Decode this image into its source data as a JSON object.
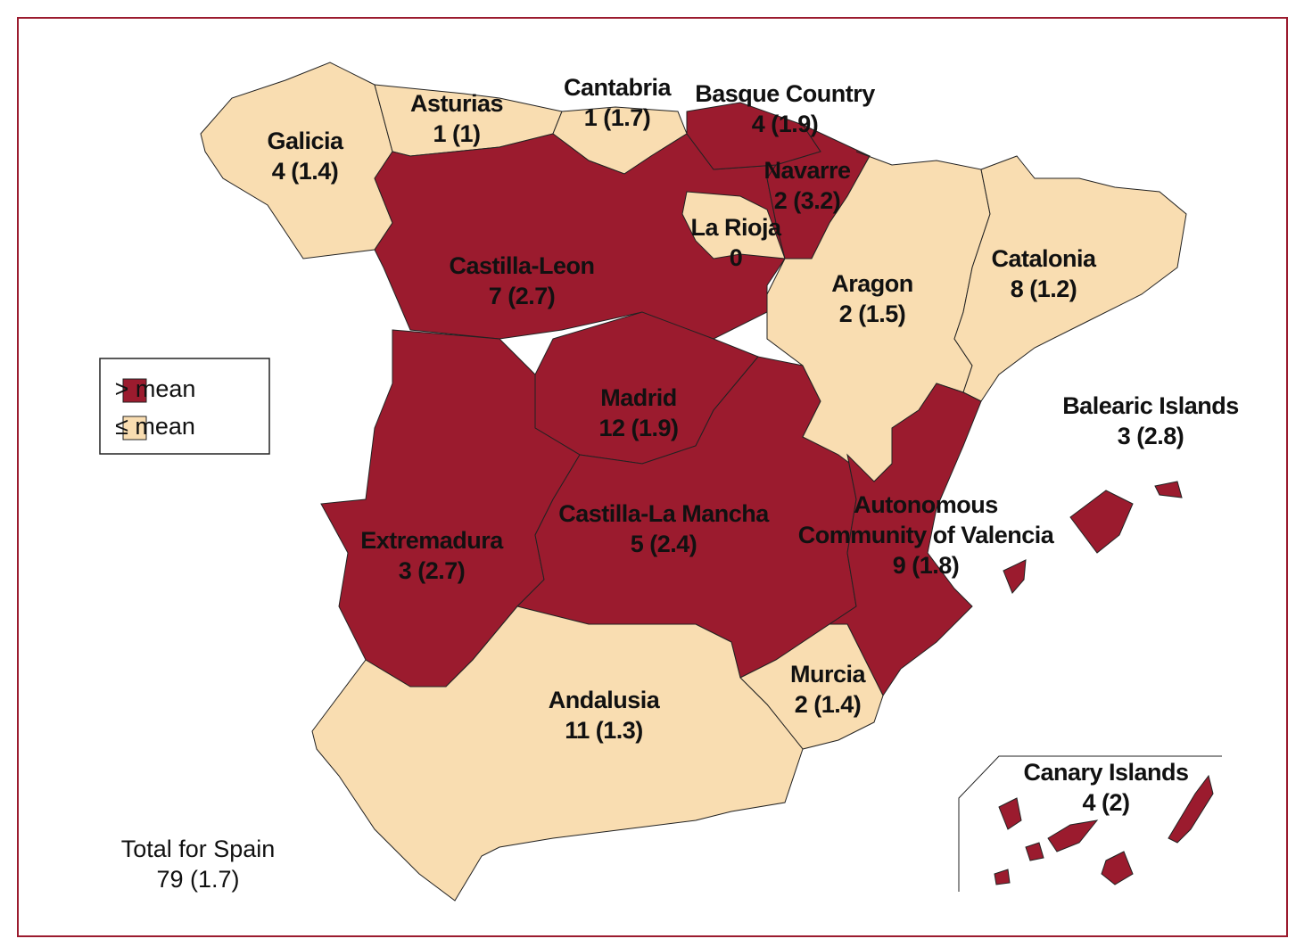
{
  "legend": [
    {
      "label": "> mean",
      "color": "#9b1b2e"
    },
    {
      "label": "≤ mean",
      "color": "#f9ddb1"
    }
  ],
  "regions": [
    {
      "name": [
        "Galicia"
      ],
      "label": "4 (1.4)",
      "class": 1
    },
    {
      "name": [
        "Asturias"
      ],
      "label": "1 (1)",
      "class": 1
    },
    {
      "name": [
        "Cantabria"
      ],
      "label": "1 (1.7)",
      "class": 1
    },
    {
      "name": [
        "Basque Country"
      ],
      "label": "4 (1.9)",
      "class": 0
    },
    {
      "name": [
        "Navarre"
      ],
      "label": "2 (3.2)",
      "class": 0
    },
    {
      "name": [
        "Castilla-Leon"
      ],
      "label": "7 (2.7)",
      "class": 0
    },
    {
      "name": [
        "La Rioja"
      ],
      "label": "0",
      "class": 1
    },
    {
      "name": [
        "Aragon"
      ],
      "label": "2 (1.5)",
      "class": 1
    },
    {
      "name": [
        "Catalonia"
      ],
      "label": "8 (1.2)",
      "class": 1
    },
    {
      "name": [
        "Madrid"
      ],
      "label": "12 (1.9)",
      "class": 0
    },
    {
      "name": [
        "Castilla-La Mancha"
      ],
      "label": "5 (2.4)",
      "class": 0
    },
    {
      "name": [
        "Extremadura"
      ],
      "label": "3 (2.7)",
      "class": 0
    },
    {
      "name": [
        "Autonomous",
        "Community of Valencia"
      ],
      "label": "9 (1.8)",
      "class": 0
    },
    {
      "name": [
        "Murcia"
      ],
      "label": "2 (1.4)",
      "class": 1
    },
    {
      "name": [
        "Andalusia"
      ],
      "label": "11 (1.3)",
      "class": 1
    },
    {
      "name": [
        "Balearic Islands"
      ],
      "label": "3 (2.8)",
      "class": 0
    },
    {
      "name": [
        "Canary Islands"
      ],
      "label": "4 (2)",
      "class": 0
    }
  ],
  "total": {
    "name": "Total for Spain",
    "label": "79 (1.7)"
  }
}
